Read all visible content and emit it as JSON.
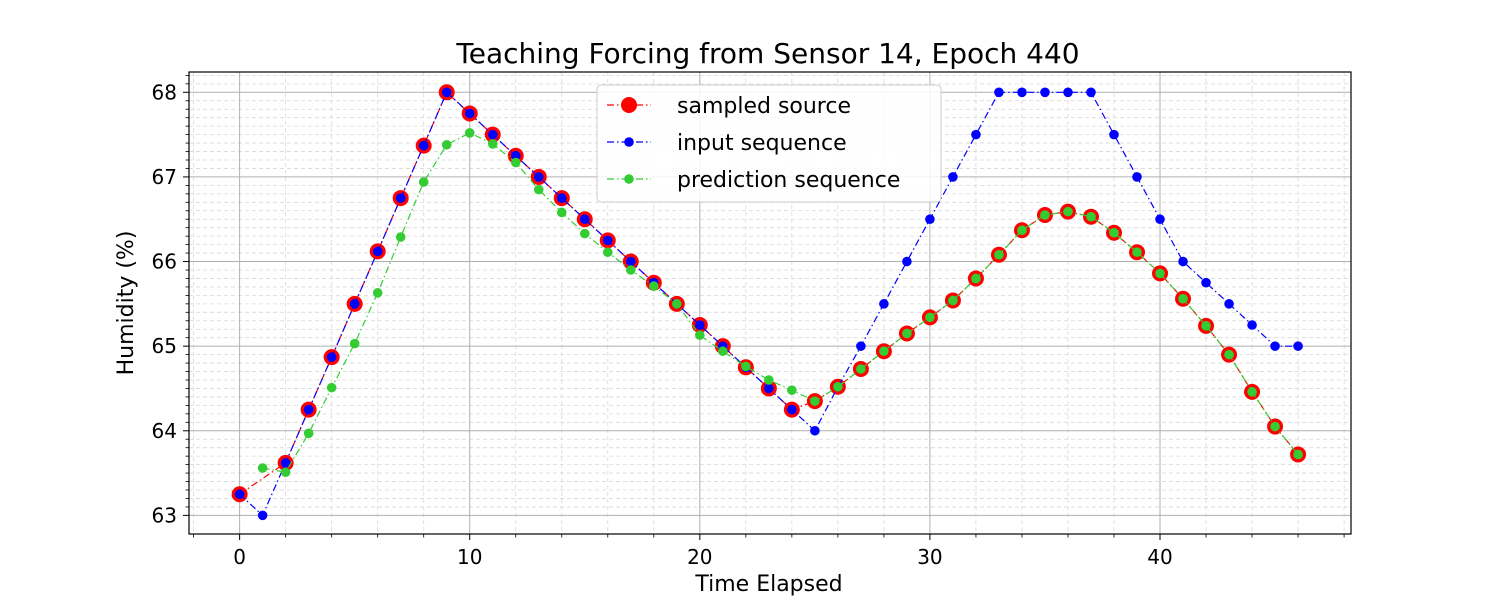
{
  "chart_data": {
    "type": "line",
    "title": "Teaching Forcing from Sensor 14, Epoch 440",
    "xlabel": "Time Elapsed",
    "ylabel": "Humidity (%)",
    "xlim": [
      -2.2,
      48.3
    ],
    "ylim": [
      62.78,
      68.24
    ],
    "xticks": [
      0,
      10,
      20,
      30,
      40
    ],
    "yticks": [
      63,
      64,
      65,
      66,
      67,
      68
    ],
    "grid": true,
    "legend_position": "upper-center",
    "series": [
      {
        "name": "sampled source",
        "color": "#ff0000",
        "marker": "large-circle",
        "x": [
          0,
          2,
          3,
          4,
          5,
          6,
          7,
          8,
          9,
          10,
          11,
          12,
          13,
          14,
          15,
          16,
          17,
          18,
          19,
          20,
          21,
          22,
          23,
          24,
          25,
          26,
          27,
          28,
          29,
          30,
          31,
          32,
          33,
          34,
          35,
          36,
          37,
          38,
          39,
          40,
          41,
          42,
          43,
          44,
          45,
          46
        ],
        "values": [
          63.25,
          63.62,
          64.25,
          64.87,
          65.5,
          66.12,
          66.75,
          67.37,
          68.0,
          67.75,
          67.5,
          67.25,
          67.0,
          66.75,
          66.5,
          66.25,
          66.0,
          65.75,
          65.5,
          65.25,
          65.0,
          64.75,
          64.5,
          64.25,
          64.35,
          64.52,
          64.73,
          64.94,
          65.15,
          65.34,
          65.54,
          65.8,
          66.08,
          66.37,
          66.55,
          66.59,
          66.53,
          66.34,
          66.11,
          65.86,
          65.56,
          65.24,
          64.9,
          64.46,
          64.05,
          63.72
        ]
      },
      {
        "name": "input sequence",
        "color": "#0000ff",
        "marker": "circle",
        "x": [
          0,
          1,
          2,
          3,
          4,
          5,
          6,
          7,
          8,
          9,
          10,
          11,
          12,
          13,
          14,
          15,
          16,
          17,
          18,
          19,
          20,
          21,
          22,
          23,
          24,
          25,
          26,
          27,
          28,
          29,
          30,
          31,
          32,
          33,
          34,
          35,
          36,
          37,
          38,
          39,
          40,
          41,
          42,
          43,
          44,
          45,
          46
        ],
        "values": [
          63.25,
          63.0,
          63.62,
          64.25,
          64.87,
          65.5,
          66.12,
          66.75,
          67.37,
          68.0,
          67.75,
          67.5,
          67.25,
          67.0,
          66.75,
          66.5,
          66.25,
          66.0,
          65.75,
          65.5,
          65.25,
          65.0,
          64.75,
          64.5,
          64.25,
          64.0,
          64.52,
          65.0,
          65.5,
          66.0,
          66.5,
          67.0,
          67.5,
          68.0,
          68.0,
          68.0,
          68.0,
          68.0,
          67.5,
          67.0,
          66.5,
          66.0,
          65.75,
          65.5,
          65.25,
          65.0,
          65.0
        ]
      },
      {
        "name": "prediction sequence",
        "color": "#33cc33",
        "marker": "circle",
        "x": [
          1,
          2,
          3,
          4,
          5,
          6,
          7,
          8,
          9,
          10,
          11,
          12,
          13,
          14,
          15,
          16,
          17,
          18,
          19,
          20,
          21,
          22,
          23,
          24,
          25,
          26,
          27,
          28,
          29,
          30,
          31,
          32,
          33,
          34,
          35,
          36,
          37,
          38,
          39,
          40,
          41,
          42,
          43,
          44,
          45,
          46
        ],
        "values": [
          63.56,
          63.51,
          63.97,
          64.51,
          65.03,
          65.63,
          66.29,
          66.94,
          67.38,
          67.52,
          67.39,
          67.17,
          66.85,
          66.58,
          66.33,
          66.11,
          65.9,
          65.71,
          65.5,
          65.13,
          64.94,
          64.76,
          64.6,
          64.48,
          64.35,
          64.52,
          64.73,
          64.94,
          65.15,
          65.34,
          65.54,
          65.8,
          66.08,
          66.37,
          66.55,
          66.59,
          66.53,
          66.34,
          66.11,
          65.86,
          65.56,
          65.24,
          64.9,
          64.46,
          64.05,
          63.72
        ]
      }
    ]
  }
}
